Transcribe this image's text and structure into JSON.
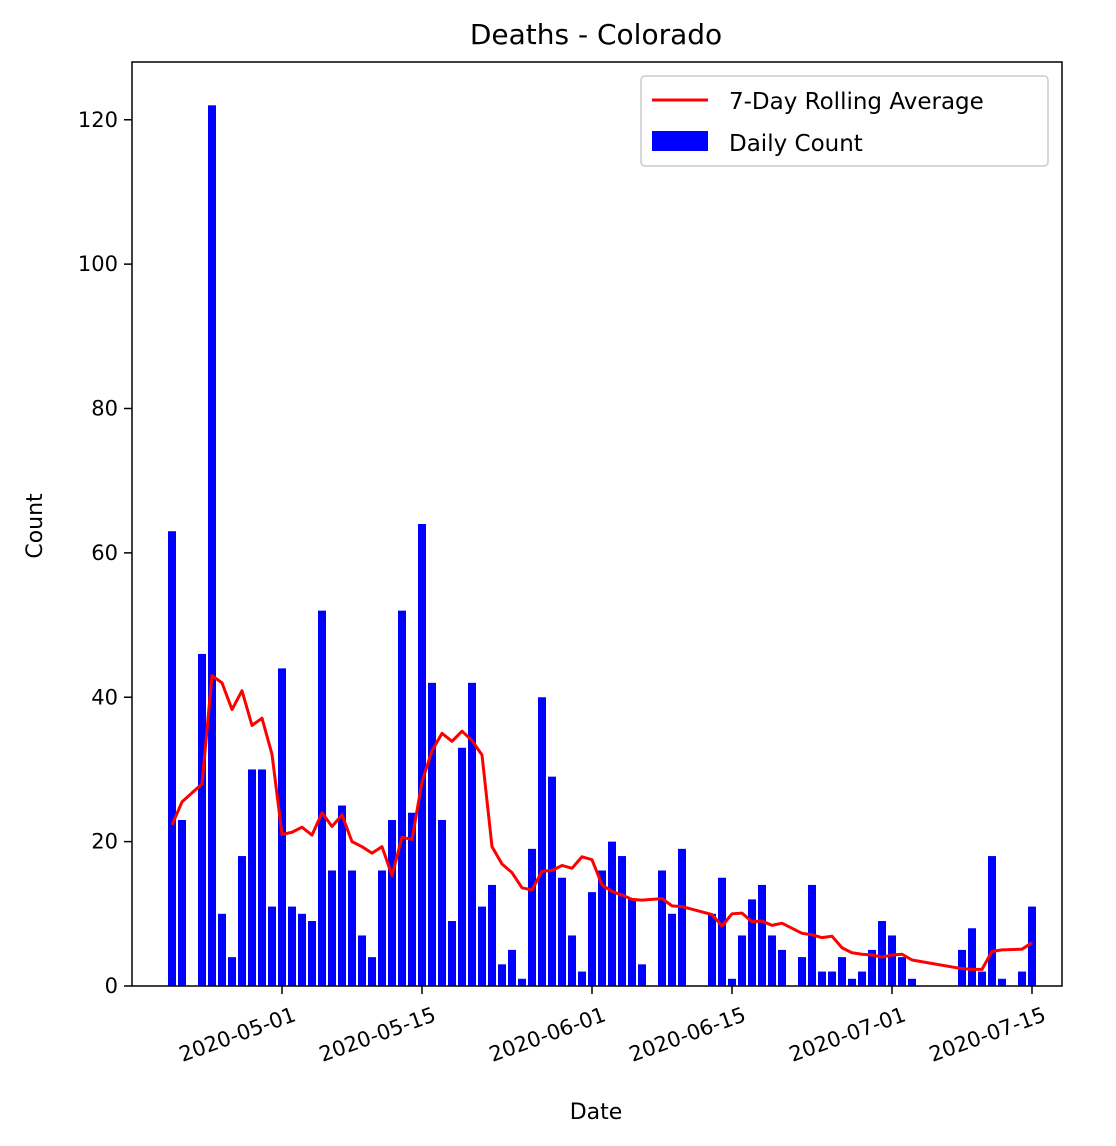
{
  "chart_data": {
    "type": "bar",
    "title": "Deaths - Colorado",
    "xlabel": "Date",
    "ylabel": "Count",
    "ylim": [
      0,
      128
    ],
    "xlim": [
      "2020-04-16",
      "2020-07-18"
    ],
    "yticks": [
      0,
      20,
      40,
      60,
      80,
      100,
      120
    ],
    "xticks": [
      "2020-05-01",
      "2020-05-15",
      "2020-06-01",
      "2020-06-15",
      "2020-07-01",
      "2020-07-15"
    ],
    "grid": false,
    "legend": "top-right",
    "series": [
      {
        "name": "Daily Count",
        "kind": "bar",
        "color": "#0000ff",
        "x": [
          "2020-04-20",
          "2020-04-21",
          "2020-04-23",
          "2020-04-24",
          "2020-04-25",
          "2020-04-26",
          "2020-04-27",
          "2020-04-28",
          "2020-04-29",
          "2020-04-30",
          "2020-05-01",
          "2020-05-02",
          "2020-05-03",
          "2020-05-04",
          "2020-05-05",
          "2020-05-06",
          "2020-05-07",
          "2020-05-08",
          "2020-05-09",
          "2020-05-10",
          "2020-05-11",
          "2020-05-12",
          "2020-05-13",
          "2020-05-14",
          "2020-05-15",
          "2020-05-16",
          "2020-05-17",
          "2020-05-18",
          "2020-05-19",
          "2020-05-20",
          "2020-05-21",
          "2020-05-22",
          "2020-05-23",
          "2020-05-24",
          "2020-05-25",
          "2020-05-26",
          "2020-05-27",
          "2020-05-28",
          "2020-05-29",
          "2020-05-30",
          "2020-05-31",
          "2020-06-01",
          "2020-06-02",
          "2020-06-03",
          "2020-06-04",
          "2020-06-05",
          "2020-06-06",
          "2020-06-08",
          "2020-06-09",
          "2020-06-10",
          "2020-06-13",
          "2020-06-14",
          "2020-06-15",
          "2020-06-16",
          "2020-06-17",
          "2020-06-18",
          "2020-06-19",
          "2020-06-20",
          "2020-06-22",
          "2020-06-23",
          "2020-06-24",
          "2020-06-25",
          "2020-06-26",
          "2020-06-27",
          "2020-06-28",
          "2020-06-29",
          "2020-06-30",
          "2020-07-01",
          "2020-07-02",
          "2020-07-03",
          "2020-07-08",
          "2020-07-09",
          "2020-07-10",
          "2020-07-11",
          "2020-07-12",
          "2020-07-14",
          "2020-07-15"
        ],
        "values": [
          63,
          23,
          46,
          122,
          10,
          4,
          18,
          30,
          30,
          11,
          44,
          11,
          10,
          9,
          52,
          16,
          25,
          16,
          7,
          4,
          16,
          23,
          52,
          24,
          64,
          42,
          23,
          9,
          33,
          42,
          11,
          14,
          3,
          5,
          1,
          19,
          40,
          29,
          15,
          7,
          2,
          13,
          16,
          20,
          18,
          12,
          3,
          16,
          10,
          19,
          10,
          15,
          1,
          7,
          12,
          14,
          7,
          5,
          4,
          14,
          2,
          2,
          4,
          1,
          2,
          5,
          9,
          7,
          4,
          1,
          5,
          8,
          2,
          18,
          1,
          2,
          11
        ]
      },
      {
        "name": "7-Day Rolling Average",
        "kind": "line",
        "color": "#ff0000",
        "x": [
          "2020-04-20",
          "2020-04-21",
          "2020-04-23",
          "2020-04-24",
          "2020-04-25",
          "2020-04-26",
          "2020-04-27",
          "2020-04-28",
          "2020-04-29",
          "2020-04-30",
          "2020-05-01",
          "2020-05-02",
          "2020-05-03",
          "2020-05-04",
          "2020-05-05",
          "2020-05-06",
          "2020-05-07",
          "2020-05-08",
          "2020-05-09",
          "2020-05-10",
          "2020-05-11",
          "2020-05-12",
          "2020-05-13",
          "2020-05-14",
          "2020-05-15",
          "2020-05-16",
          "2020-05-17",
          "2020-05-18",
          "2020-05-19",
          "2020-05-20",
          "2020-05-21",
          "2020-05-22",
          "2020-05-23",
          "2020-05-24",
          "2020-05-25",
          "2020-05-26",
          "2020-05-27",
          "2020-05-28",
          "2020-05-29",
          "2020-05-30",
          "2020-05-31",
          "2020-06-01",
          "2020-06-02",
          "2020-06-03",
          "2020-06-04",
          "2020-06-05",
          "2020-06-06",
          "2020-06-08",
          "2020-06-09",
          "2020-06-10",
          "2020-06-13",
          "2020-06-14",
          "2020-06-15",
          "2020-06-16",
          "2020-06-17",
          "2020-06-18",
          "2020-06-19",
          "2020-06-20",
          "2020-06-22",
          "2020-06-23",
          "2020-06-24",
          "2020-06-25",
          "2020-06-26",
          "2020-06-27",
          "2020-06-28",
          "2020-06-29",
          "2020-06-30",
          "2020-07-01",
          "2020-07-02",
          "2020-07-03",
          "2020-07-08",
          "2020-07-09",
          "2020-07-10",
          "2020-07-11",
          "2020-07-12",
          "2020-07-14",
          "2020-07-15"
        ],
        "values": [
          22.3,
          25.5,
          28,
          43,
          42,
          38.3,
          40.9,
          36.1,
          37.1,
          32.1,
          21,
          21.3,
          22,
          20.9,
          24,
          22.1,
          23.7,
          20,
          19.3,
          18.4,
          19.3,
          15.3,
          20.6,
          20.3,
          28.3,
          32.6,
          35,
          33.9,
          35.3,
          34,
          32,
          19.3,
          16.9,
          15.7,
          13.6,
          13.3,
          15.9,
          16,
          16.7,
          16.3,
          17.9,
          17.5,
          14,
          13.1,
          12.6,
          12,
          11.9,
          12.1,
          11.1,
          11,
          9.9,
          8.3,
          10,
          10.1,
          8.9,
          9,
          8.4,
          8.7,
          7.3,
          7.1,
          6.7,
          6.9,
          5.3,
          4.6,
          4.4,
          4.3,
          4.0,
          4.3,
          4.4,
          3.6,
          2.4,
          2.3,
          2.3,
          4.8,
          5,
          5.1,
          6
        ]
      }
    ]
  }
}
